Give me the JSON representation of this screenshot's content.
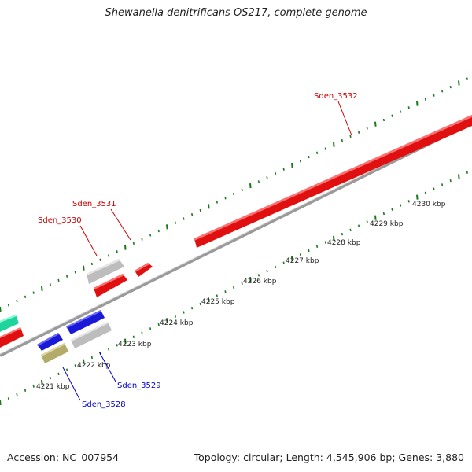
{
  "title": "Shewanella denitrificans OS217, complete genome",
  "footer": {
    "accession": "Accession: NC_007954",
    "summary": "Topology: circular; Length: 4,545,906 bp; Genes: 3,880"
  },
  "colors": {
    "forward_gene": "#ee1111",
    "reverse_gene": "#1818dd",
    "other_gene": "#c8c8c8",
    "rna_gene": "#b8b070",
    "teal_gene": "#22ddaa",
    "backbone": "#888888",
    "tick": "#1a7a1a"
  },
  "scale": {
    "ticks": [
      {
        "label": "4221 kbp"
      },
      {
        "label": "4222 kbp"
      },
      {
        "label": "4223 kbp"
      },
      {
        "label": "4224 kbp"
      },
      {
        "label": "4225 kbp"
      },
      {
        "label": "4226 kbp"
      },
      {
        "label": "4227 kbp"
      },
      {
        "label": "4228 kbp"
      },
      {
        "label": "4229 kbp"
      },
      {
        "label": "4230 kbp"
      }
    ]
  },
  "gene_labels": [
    {
      "name": "Sden_3532",
      "color": "#cc0000"
    },
    {
      "name": "Sden_3531",
      "color": "#cc0000"
    },
    {
      "name": "Sden_3530",
      "color": "#cc0000"
    },
    {
      "name": "Sden_3529",
      "color": "#0000cc"
    },
    {
      "name": "Sden_3528",
      "color": "#0000cc"
    }
  ]
}
